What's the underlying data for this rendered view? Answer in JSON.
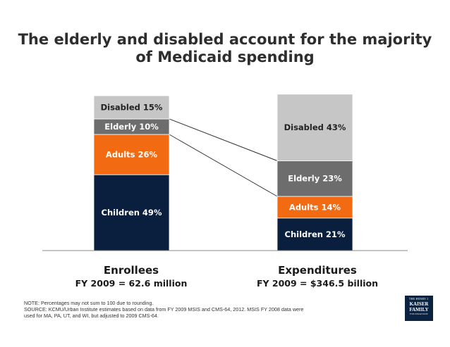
{
  "title": {
    "line1": "The elderly and disabled account for the majority",
    "line2": "of Medicaid spending"
  },
  "chart_data": {
    "type": "bar",
    "stacked": true,
    "units": "percent",
    "categories": [
      "Enrollees",
      "Expenditures"
    ],
    "subtitles": [
      "FY 2009 = 62.6 million",
      "FY 2009 = $346.5 billion"
    ],
    "series": [
      {
        "name": "Children",
        "values": [
          49,
          21
        ],
        "labels": [
          "Children 49%",
          "Children 21%"
        ],
        "color": "#0a1f3e",
        "text_color": "#ffffff"
      },
      {
        "name": "Adults",
        "values": [
          26,
          14
        ],
        "labels": [
          "Adults 26%",
          "Adults 14%"
        ],
        "color": "#f26a12",
        "text_color": "#ffffff"
      },
      {
        "name": "Elderly",
        "values": [
          10,
          23
        ],
        "labels": [
          "Elderly 10%",
          "Elderly 23%"
        ],
        "color": "#6d6d6d",
        "text_color": "#ffffff"
      },
      {
        "name": "Disabled",
        "values": [
          15,
          43
        ],
        "labels": [
          "Disabled 15%",
          "Disabled 43%"
        ],
        "color": "#c6c6c6",
        "text_color": "#222222"
      }
    ],
    "connector_lines": "Disabled and Elderly segments connected between bars",
    "ylim": [
      0,
      100
    ]
  },
  "notes": {
    "line1": "NOTE: Percentages may not sum to 100 due to rounding.",
    "line2": "SOURCE:  KCMU/Urban Institute estimates based on data from FY 2009 MSIS and CMS-64, 2012. MSIS FY 2008 data were",
    "line3": "used for MA, PA, UT, and WI, but adjusted to 2009 CMS-64."
  },
  "logo": {
    "line1": "THE HENRY J.",
    "line2": "KAISER",
    "line3": "FAMILY",
    "line4": "FOUNDATION"
  }
}
